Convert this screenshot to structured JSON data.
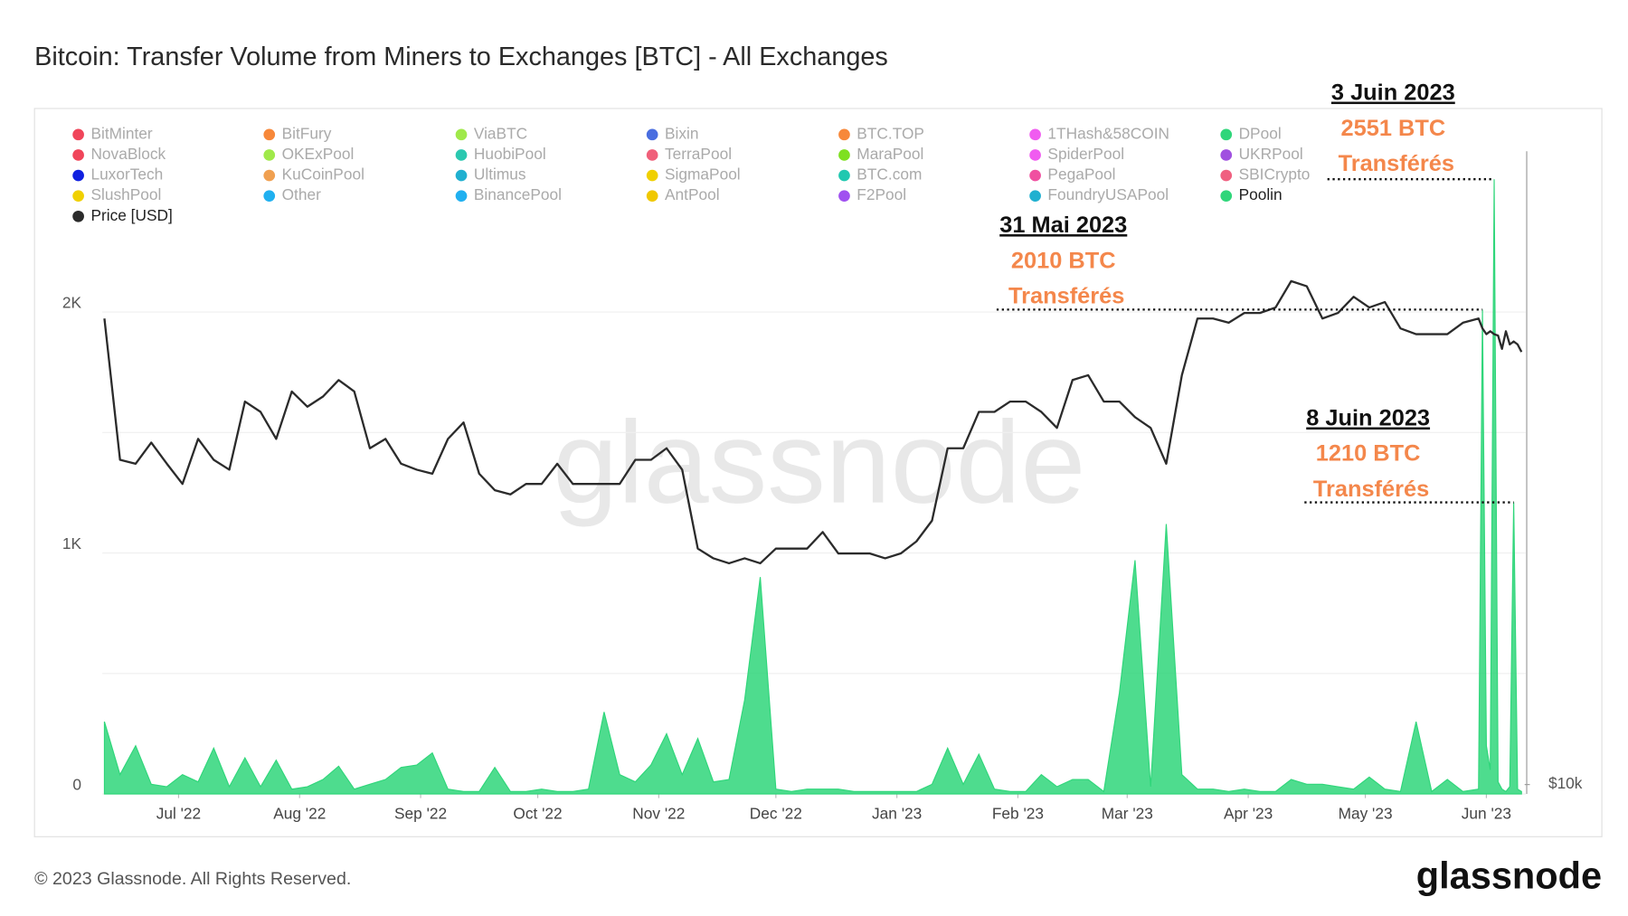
{
  "chart_data": {
    "type": "area",
    "title": "Bitcoin: Transfer Volume from Miners to Exchanges [BTC] - All Exchanges",
    "watermark": "glassnode",
    "footer": "© 2023 Glassnode. All Rights Reserved.",
    "logo": "glassnode",
    "x": [
      "2022-06-12",
      "2022-06-16",
      "2022-06-20",
      "2022-06-24",
      "2022-06-28",
      "2022-07-02",
      "2022-07-06",
      "2022-07-10",
      "2022-07-14",
      "2022-07-18",
      "2022-07-22",
      "2022-07-26",
      "2022-07-30",
      "2022-08-03",
      "2022-08-07",
      "2022-08-11",
      "2022-08-15",
      "2022-08-19",
      "2022-08-23",
      "2022-08-27",
      "2022-08-31",
      "2022-09-04",
      "2022-09-08",
      "2022-09-12",
      "2022-09-16",
      "2022-09-20",
      "2022-09-24",
      "2022-09-28",
      "2022-10-02",
      "2022-10-06",
      "2022-10-10",
      "2022-10-14",
      "2022-10-18",
      "2022-10-22",
      "2022-10-26",
      "2022-10-30",
      "2022-11-03",
      "2022-11-07",
      "2022-11-11",
      "2022-11-15",
      "2022-11-19",
      "2022-11-23",
      "2022-11-27",
      "2022-12-01",
      "2022-12-05",
      "2022-12-09",
      "2022-12-13",
      "2022-12-17",
      "2022-12-21",
      "2022-12-25",
      "2022-12-29",
      "2023-01-02",
      "2023-01-06",
      "2023-01-10",
      "2023-01-14",
      "2023-01-18",
      "2023-01-22",
      "2023-01-26",
      "2023-01-30",
      "2023-02-03",
      "2023-02-07",
      "2023-02-11",
      "2023-02-15",
      "2023-02-19",
      "2023-02-23",
      "2023-02-27",
      "2023-03-03",
      "2023-03-07",
      "2023-03-11",
      "2023-03-15",
      "2023-03-19",
      "2023-03-23",
      "2023-03-27",
      "2023-03-31",
      "2023-04-04",
      "2023-04-08",
      "2023-04-12",
      "2023-04-16",
      "2023-04-20",
      "2023-04-24",
      "2023-04-28",
      "2023-05-02",
      "2023-05-06",
      "2023-05-10",
      "2023-05-14",
      "2023-05-18",
      "2023-05-22",
      "2023-05-26",
      "2023-05-30",
      "2023-05-31",
      "2023-06-01",
      "2023-06-02",
      "2023-06-03",
      "2023-06-04",
      "2023-06-05",
      "2023-06-06",
      "2023-06-07",
      "2023-06-08",
      "2023-06-09",
      "2023-06-10"
    ],
    "xlim": [
      "2022-06-12",
      "2023-06-10"
    ],
    "xticks": [
      {
        "value": "2022-07-01",
        "label": "Jul '22"
      },
      {
        "value": "2022-08-01",
        "label": "Aug '22"
      },
      {
        "value": "2022-09-01",
        "label": "Sep '22"
      },
      {
        "value": "2022-10-01",
        "label": "Oct '22"
      },
      {
        "value": "2022-11-01",
        "label": "Nov '22"
      },
      {
        "value": "2022-12-01",
        "label": "Dec '22"
      },
      {
        "value": "2023-01-01",
        "label": "Jan '23"
      },
      {
        "value": "2023-02-01",
        "label": "Feb '23"
      },
      {
        "value": "2023-03-01",
        "label": "Mar '23"
      },
      {
        "value": "2023-04-01",
        "label": "Apr '23"
      },
      {
        "value": "2023-05-01",
        "label": "May '23"
      },
      {
        "value": "2023-06-01",
        "label": "Jun '23"
      }
    ],
    "ylim": [
      0,
      2667
    ],
    "yticks": [
      0,
      {
        "value": 1000,
        "label": "1K"
      },
      {
        "value": 2000,
        "label": "2K"
      }
    ],
    "yminor": [
      500,
      1500
    ],
    "y2lim": [
      9780,
      44900
    ],
    "y2log": true,
    "y2ticks": [
      {
        "value": 10000,
        "label": "$10k"
      }
    ],
    "grid": true,
    "legend": "top-left",
    "legend_inactive": [
      {
        "name": "BitMinter",
        "color": "#f0455a"
      },
      {
        "name": "BitFury",
        "color": "#f7883a"
      },
      {
        "name": "ViaBTC",
        "color": "#a0e94a"
      },
      {
        "name": "Bixin",
        "color": "#4a6ee0"
      },
      {
        "name": "BTC.TOP",
        "color": "#f7883a"
      },
      {
        "name": "1THash&58COIN",
        "color": "#f05cf0"
      },
      {
        "name": "DPool",
        "color": "#2fd67a"
      },
      {
        "name": "NovaBlock",
        "color": "#f0455a"
      },
      {
        "name": "OKExPool",
        "color": "#a0e94a"
      },
      {
        "name": "HuobiPool",
        "color": "#2bc8b0"
      },
      {
        "name": "TerraPool",
        "color": "#f0607a"
      },
      {
        "name": "MaraPool",
        "color": "#7ee020"
      },
      {
        "name": "SpiderPool",
        "color": "#f05cf0"
      },
      {
        "name": "UKRPool",
        "color": "#a050e0"
      },
      {
        "name": "LuxorTech",
        "color": "#1020e0"
      },
      {
        "name": "KuCoinPool",
        "color": "#f0a050"
      },
      {
        "name": "Ultimus",
        "color": "#20b0d0"
      },
      {
        "name": "SigmaPool",
        "color": "#f0d000"
      },
      {
        "name": "BTC.com",
        "color": "#20c8b0"
      },
      {
        "name": "PegaPool",
        "color": "#f050a0"
      },
      {
        "name": "SBICrypto",
        "color": "#f06080"
      },
      {
        "name": "SlushPool",
        "color": "#f0d000"
      },
      {
        "name": "Other",
        "color": "#20b0f0"
      },
      {
        "name": "BinancePool",
        "color": "#20b0f0"
      },
      {
        "name": "AntPool",
        "color": "#f0c800"
      },
      {
        "name": "F2Pool",
        "color": "#a050f0"
      },
      {
        "name": "FoundryUSAPool",
        "color": "#20b0d0"
      }
    ],
    "series": [
      {
        "name": "Poolin",
        "color": "#2fd67a",
        "axis": "y",
        "values": [
          300,
          80,
          200,
          40,
          30,
          80,
          50,
          190,
          30,
          150,
          30,
          140,
          20,
          30,
          60,
          115,
          20,
          40,
          60,
          110,
          120,
          170,
          20,
          10,
          10,
          110,
          10,
          10,
          20,
          10,
          10,
          20,
          340,
          80,
          50,
          120,
          250,
          80,
          230,
          50,
          60,
          390,
          900,
          20,
          10,
          20,
          20,
          20,
          10,
          10,
          10,
          10,
          10,
          40,
          190,
          40,
          165,
          20,
          10,
          10,
          80,
          30,
          60,
          60,
          10,
          420,
          970,
          30,
          1120,
          80,
          20,
          20,
          10,
          20,
          10,
          10,
          60,
          40,
          40,
          30,
          20,
          70,
          20,
          10,
          300,
          10,
          60,
          10,
          20,
          2010,
          200,
          100,
          2551,
          50,
          20,
          10,
          30,
          1210,
          20,
          10
        ]
      },
      {
        "name": "Price [USD]",
        "color": "#2b2b2b",
        "axis": "y2",
        "type": "line",
        "values": [
          30200,
          21600,
          21400,
          22500,
          21400,
          20400,
          22700,
          21600,
          21100,
          24800,
          24200,
          22700,
          25400,
          24500,
          25100,
          26100,
          25400,
          22200,
          22700,
          21400,
          21100,
          20900,
          22700,
          23600,
          20900,
          20100,
          19900,
          20400,
          20400,
          21400,
          20400,
          20400,
          20400,
          20400,
          21600,
          21600,
          22200,
          21100,
          17500,
          17100,
          16900,
          17100,
          16900,
          17500,
          17500,
          17500,
          18200,
          17300,
          17300,
          17300,
          17100,
          17300,
          17800,
          18700,
          22200,
          22200,
          24200,
          24200,
          24800,
          24800,
          24200,
          23300,
          26100,
          26400,
          24800,
          24800,
          23900,
          23300,
          21400,
          26400,
          30200,
          30200,
          29900,
          30600,
          30600,
          31000,
          33000,
          32600,
          30200,
          30600,
          31800,
          31000,
          31400,
          29500,
          29100,
          29100,
          29100,
          29900,
          30200,
          29500,
          29100,
          29300,
          29100,
          29000,
          28100,
          29300,
          28400,
          28600,
          28400,
          27900
        ]
      }
    ],
    "annotations": [
      {
        "date_label": "31 Mai 2023",
        "amount": "2010 BTC",
        "note": "Transférés",
        "x": "2023-05-31",
        "value": 2010
      },
      {
        "date_label": "3 Juin 2023",
        "amount": "2551 BTC",
        "note": "Transférés",
        "x": "2023-06-03",
        "value": 2551
      },
      {
        "date_label": "8 Juin 2023",
        "amount": "1210 BTC",
        "note": "Transférés",
        "x": "2023-06-08",
        "value": 1210
      }
    ]
  }
}
